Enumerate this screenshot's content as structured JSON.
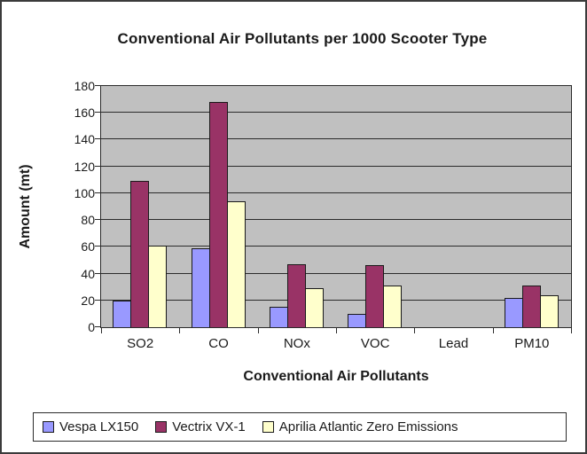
{
  "chart_data": {
    "type": "bar",
    "title": "Conventional Air Pollutants per 1000 Scooter Type",
    "xlabel": "Conventional Air Pollutants",
    "ylabel": "Amount (mt)",
    "categories": [
      "SO2",
      "CO",
      "NOx",
      "VOC",
      "Lead",
      "PM10"
    ],
    "series": [
      {
        "name": "Vespa LX150",
        "color": "#9999FF",
        "values": [
          20,
          59,
          15,
          10,
          0,
          22
        ]
      },
      {
        "name": "Vectrix VX-1",
        "color": "#993366",
        "values": [
          109,
          168,
          47,
          46,
          0,
          31
        ]
      },
      {
        "name": "Aprilia Atlantic Zero Emissions",
        "color": "#FFFFCC",
        "values": [
          61,
          94,
          29,
          31,
          0,
          24
        ]
      }
    ],
    "ylim": [
      0,
      180
    ],
    "ytick_step": 20,
    "ytick_labels": [
      "0",
      "20",
      "40",
      "60",
      "80",
      "100",
      "120",
      "140",
      "160",
      "180"
    ],
    "grid": true,
    "legend_position": "bottom",
    "plot_background": "#C0C0C0",
    "gridline_color": "#2b2b2b",
    "bar_border_color": "#1a1a1a"
  }
}
